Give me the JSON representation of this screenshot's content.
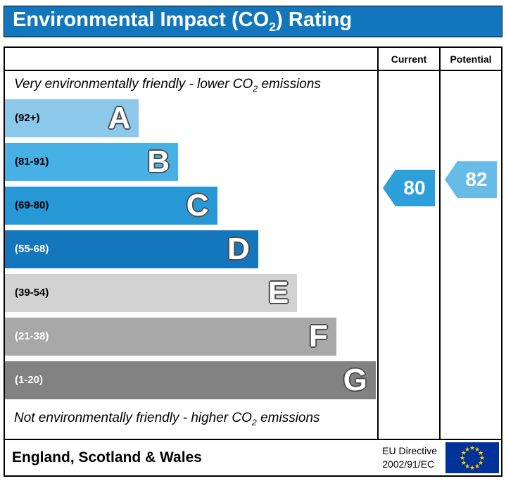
{
  "title": {
    "pre": "Environmental Impact (CO",
    "sub": "2",
    "post": ") Rating"
  },
  "header": {
    "current": "Current",
    "potential": "Potential"
  },
  "notes": {
    "top": {
      "pre": "Very environmentally friendly - lower CO",
      "sub": "2",
      "post": " emissions"
    },
    "bottom": {
      "pre": "Not environmentally friendly - higher CO",
      "sub": "2",
      "post": " emissions"
    }
  },
  "chart_data": {
    "type": "bar",
    "title": "Environmental Impact (CO2) Rating",
    "bands": [
      {
        "letter": "A",
        "range": "(92+)",
        "min": 92,
        "max": 100,
        "color": "#8bc8ea",
        "text_color": "#000000",
        "width_pct": 36
      },
      {
        "letter": "B",
        "range": "(81-91)",
        "min": 81,
        "max": 91,
        "color": "#47b0e4",
        "text_color": "#000000",
        "width_pct": 46.5
      },
      {
        "letter": "C",
        "range": "(69-80)",
        "min": 69,
        "max": 80,
        "color": "#2698d6",
        "text_color": "#000000",
        "width_pct": 57
      },
      {
        "letter": "D",
        "range": "(55-68)",
        "min": 55,
        "max": 68,
        "color": "#1477bd",
        "text_color": "#ffffff",
        "width_pct": 68
      },
      {
        "letter": "E",
        "range": "(39-54)",
        "min": 39,
        "max": 54,
        "color": "#d2d2d2",
        "text_color": "#000000",
        "width_pct": 78.5
      },
      {
        "letter": "F",
        "range": "(21-38)",
        "min": 21,
        "max": 38,
        "color": "#a8a8a8",
        "text_color": "#ffffff",
        "width_pct": 89
      },
      {
        "letter": "G",
        "range": "(1-20)",
        "min": 1,
        "max": 20,
        "color": "#828282",
        "text_color": "#ffffff",
        "width_pct": 99.6
      }
    ],
    "current": {
      "value": "80",
      "color": "#2d9fdb"
    },
    "potential": {
      "value": "82",
      "color": "#66bbe7"
    },
    "legend_position": "right-columns",
    "grid": false
  },
  "footer": {
    "region": "England, Scotland & Wales",
    "directive_line1": "EU Directive",
    "directive_line2": "2002/91/EC"
  },
  "colors": {
    "title_bg": "#1276bc",
    "title_text": "#ffffff",
    "eu_flag_bg": "#003399",
    "eu_flag_star": "#ffcc00"
  }
}
